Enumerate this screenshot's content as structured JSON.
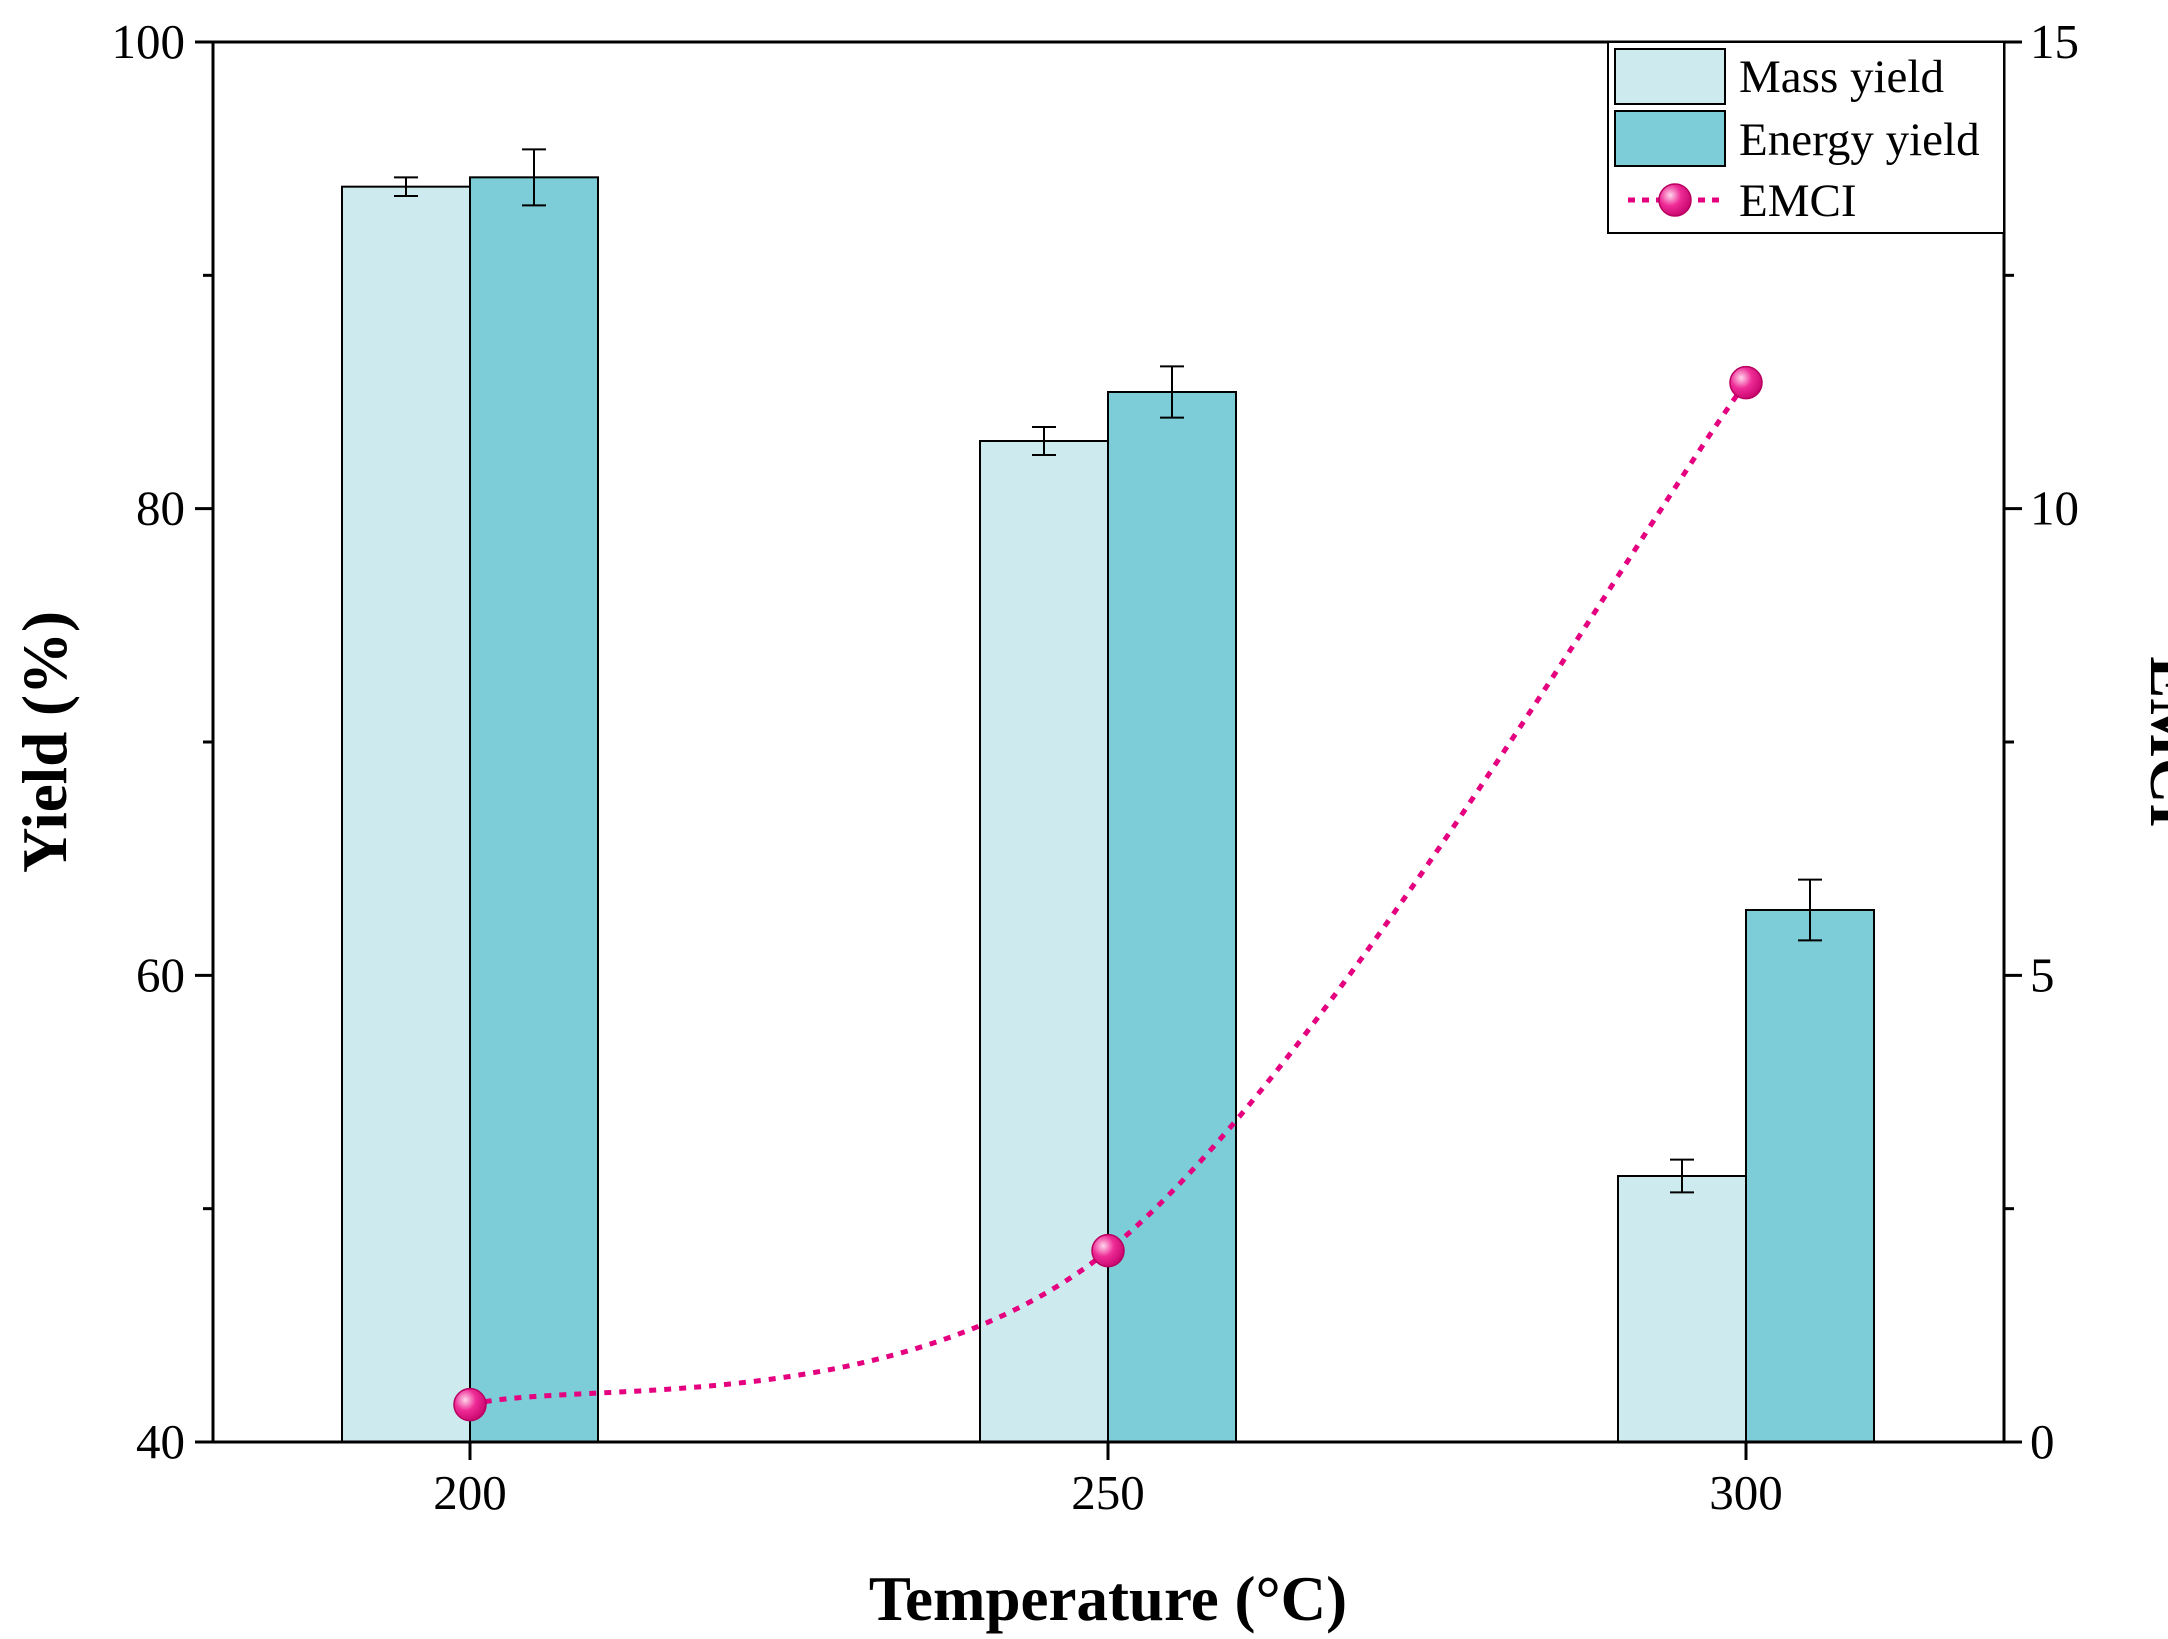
{
  "chart_data": {
    "type": "bar",
    "categories": [
      "200",
      "250",
      "300"
    ],
    "xlabel": "Temperature (°C)",
    "ylabel": "Yield (%)",
    "ylabel_right": "EMCI",
    "ylim": [
      40,
      100
    ],
    "ylim_right": [
      0,
      15
    ],
    "yticks": [
      "40",
      "60",
      "80",
      "100"
    ],
    "yticks_right": [
      "0",
      "5",
      "10",
      "15"
    ],
    "series": [
      {
        "name": "Mass yield",
        "type": "bar",
        "axis": "left",
        "color": "#cdebef",
        "values": [
          93.8,
          82.9,
          51.4
        ],
        "errors": [
          0.4,
          0.6,
          0.7
        ]
      },
      {
        "name": "Energy yield",
        "type": "bar",
        "axis": "left",
        "color": "#7ccdd7",
        "values": [
          94.2,
          85.0,
          62.8
        ],
        "errors": [
          1.2,
          1.1,
          1.3
        ]
      },
      {
        "name": "EMCI",
        "type": "line",
        "axis": "right",
        "color": "#e5007f",
        "values": [
          0.4,
          2.05,
          11.35
        ]
      }
    ],
    "legend": {
      "position": "top-right",
      "entries": [
        "Mass yield",
        "Energy yield",
        "EMCI"
      ]
    }
  }
}
